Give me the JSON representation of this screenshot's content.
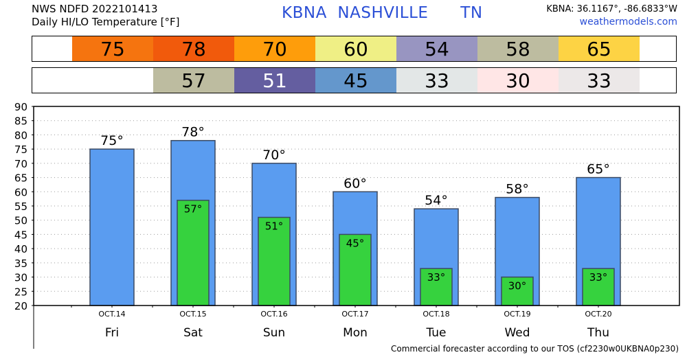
{
  "header": {
    "line1": "NWS NDFD 2022101413",
    "line2": "Daily HI/LO Temperature [°F]",
    "station_title": "KBNA  NASHVILLE      TN",
    "coords": "KBNA: 36.1167°, -86.6833°W",
    "site": "weathermodels.com"
  },
  "hi_strip": [
    {
      "value": "75",
      "color": "#f5740f"
    },
    {
      "value": "78",
      "color": "#f15a0c"
    },
    {
      "value": "70",
      "color": "#fe9d0b"
    },
    {
      "value": "60",
      "color": "#efef85"
    },
    {
      "value": "54",
      "color": "#9895c1"
    },
    {
      "value": "58",
      "color": "#bdbca0"
    },
    {
      "value": "65",
      "color": "#fdd344"
    }
  ],
  "lo_strip": [
    {
      "value": "",
      "color": "#ffffff"
    },
    {
      "value": "57",
      "color": "#bdbca0"
    },
    {
      "value": "51",
      "color": "#645ea0"
    },
    {
      "value": "45",
      "color": "#6497cc"
    },
    {
      "value": "33",
      "color": "#e3e7e7"
    },
    {
      "value": "30",
      "color": "#ffe6e6"
    },
    {
      "value": "33",
      "color": "#ece8e8"
    }
  ],
  "chart_data": {
    "type": "bar",
    "categories": [
      "Fri",
      "Sat",
      "Sun",
      "Mon",
      "Tue",
      "Wed",
      "Thu"
    ],
    "dates": [
      "OCT.14",
      "OCT.15",
      "OCT.16",
      "OCT.17",
      "OCT.18",
      "OCT.19",
      "OCT.20"
    ],
    "series": [
      {
        "values": [
          75,
          78,
          70,
          60,
          54,
          58,
          65
        ],
        "color": "#5a9cf0"
      },
      {
        "values": [
          null,
          57,
          51,
          45,
          33,
          30,
          33
        ],
        "color": "#36d23e"
      }
    ],
    "hi_labels": [
      "75°",
      "78°",
      "70°",
      "60°",
      "54°",
      "58°",
      "65°"
    ],
    "lo_labels": [
      "",
      "57°",
      "51°",
      "45°",
      "33°",
      "30°",
      "33°"
    ],
    "ylim": [
      20,
      90
    ],
    "yticks": [
      20,
      25,
      30,
      35,
      40,
      45,
      50,
      55,
      60,
      65,
      70,
      75,
      80,
      85,
      90
    ],
    "grid": true
  },
  "footer": "Commercial forecaster according to our TOS (cf2230w0UKBNA0p230)"
}
